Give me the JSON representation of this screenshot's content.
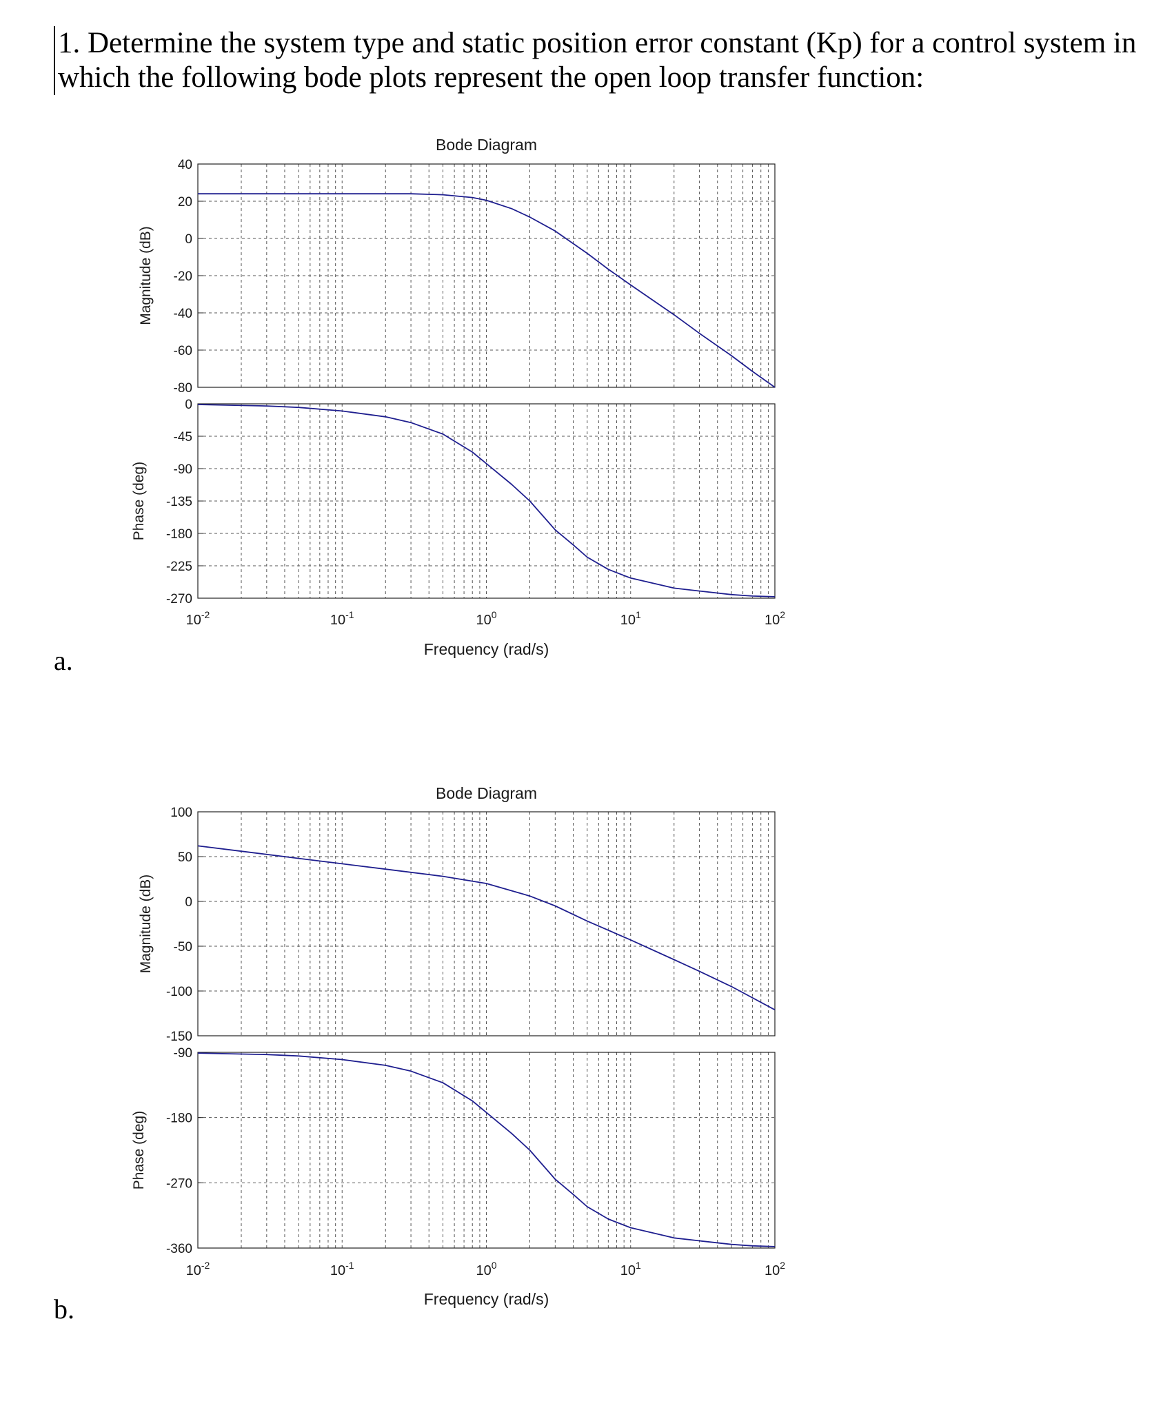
{
  "question": {
    "text": "1. Determine the system type and static position error constant (Kp) for a control system in which the following bode plots represent the open loop transfer function:"
  },
  "labels": {
    "a": "a.",
    "b": "b."
  },
  "colors": {
    "curve": "#1f1f8f",
    "grid": "#555555",
    "axis": "#222222",
    "text": "#1a1a1a"
  },
  "chart_data": [
    {
      "id": "a",
      "type": "line",
      "title": "Bode Diagram",
      "xlabel": "Frequency  (rad/s)",
      "xscale": "log",
      "xlim": [
        0.01,
        100
      ],
      "x_tick_labels": [
        {
          "base": "10",
          "exp": "-2"
        },
        {
          "base": "10",
          "exp": "-1"
        },
        {
          "base": "10",
          "exp": "0"
        },
        {
          "base": "10",
          "exp": "1"
        },
        {
          "base": "10",
          "exp": "2"
        }
      ],
      "magnitude": {
        "ylabel": "Magnitude (dB)",
        "ylim": [
          -80,
          40
        ],
        "yticks": [
          "40",
          "20",
          "0",
          "-20",
          "-40",
          "-60",
          "-80"
        ],
        "x": [
          0.01,
          0.05,
          0.1,
          0.3,
          0.5,
          0.8,
          1,
          1.5,
          2,
          3,
          5,
          7,
          10,
          20,
          30,
          50,
          70,
          100
        ],
        "y": [
          24,
          24,
          24,
          24,
          23.5,
          22,
          20.5,
          16,
          11.5,
          4,
          -8,
          -16.5,
          -25,
          -41,
          -51,
          -63,
          -71.5,
          -80
        ]
      },
      "phase": {
        "ylabel": "Phase (deg)",
        "ylim": [
          -270,
          0
        ],
        "yticks": [
          "0",
          "-45",
          "-90",
          "-135",
          "-180",
          "-225",
          "-270"
        ],
        "x": [
          0.01,
          0.03,
          0.05,
          0.1,
          0.2,
          0.3,
          0.5,
          0.8,
          1,
          1.5,
          2,
          3,
          4,
          5,
          7,
          10,
          20,
          30,
          50,
          70,
          100
        ],
        "y": [
          -1,
          -3,
          -5,
          -10,
          -18,
          -26,
          -42,
          -67,
          -83,
          -112,
          -135,
          -175,
          -196,
          -213,
          -230,
          -242,
          -256,
          -260,
          -265,
          -267,
          -268
        ]
      }
    },
    {
      "id": "b",
      "type": "line",
      "title": "Bode Diagram",
      "xlabel": "Frequency  (rad/s)",
      "xscale": "log",
      "xlim": [
        0.01,
        100
      ],
      "x_tick_labels": [
        {
          "base": "10",
          "exp": "-2"
        },
        {
          "base": "10",
          "exp": "-1"
        },
        {
          "base": "10",
          "exp": "0"
        },
        {
          "base": "10",
          "exp": "1"
        },
        {
          "base": "10",
          "exp": "2"
        }
      ],
      "magnitude": {
        "ylabel": "Magnitude (dB)",
        "ylim": [
          -150,
          100
        ],
        "yticks": [
          "100",
          "50",
          "0",
          "-50",
          "-100",
          "-150"
        ],
        "x": [
          0.01,
          0.02,
          0.05,
          0.1,
          0.2,
          0.5,
          1,
          2,
          3,
          5,
          10,
          20,
          30,
          50,
          100
        ],
        "y": [
          62,
          56,
          48,
          42,
          36,
          28,
          20,
          6,
          -5,
          -22,
          -43,
          -65,
          -78,
          -95,
          -121
        ]
      },
      "phase": {
        "ylabel": "Phase (deg)",
        "ylim": [
          -360,
          -90
        ],
        "yticks": [
          "-90",
          "-180",
          "-270",
          "-360"
        ],
        "x": [
          0.01,
          0.03,
          0.05,
          0.1,
          0.2,
          0.3,
          0.5,
          0.8,
          1,
          1.5,
          2,
          3,
          4,
          5,
          7,
          10,
          20,
          30,
          50,
          70,
          100
        ],
        "y": [
          -91,
          -93,
          -95,
          -100,
          -108,
          -116,
          -132,
          -157,
          -173,
          -202,
          -225,
          -265,
          -286,
          -303,
          -320,
          -332,
          -346,
          -350,
          -355,
          -357,
          -358
        ]
      }
    }
  ]
}
